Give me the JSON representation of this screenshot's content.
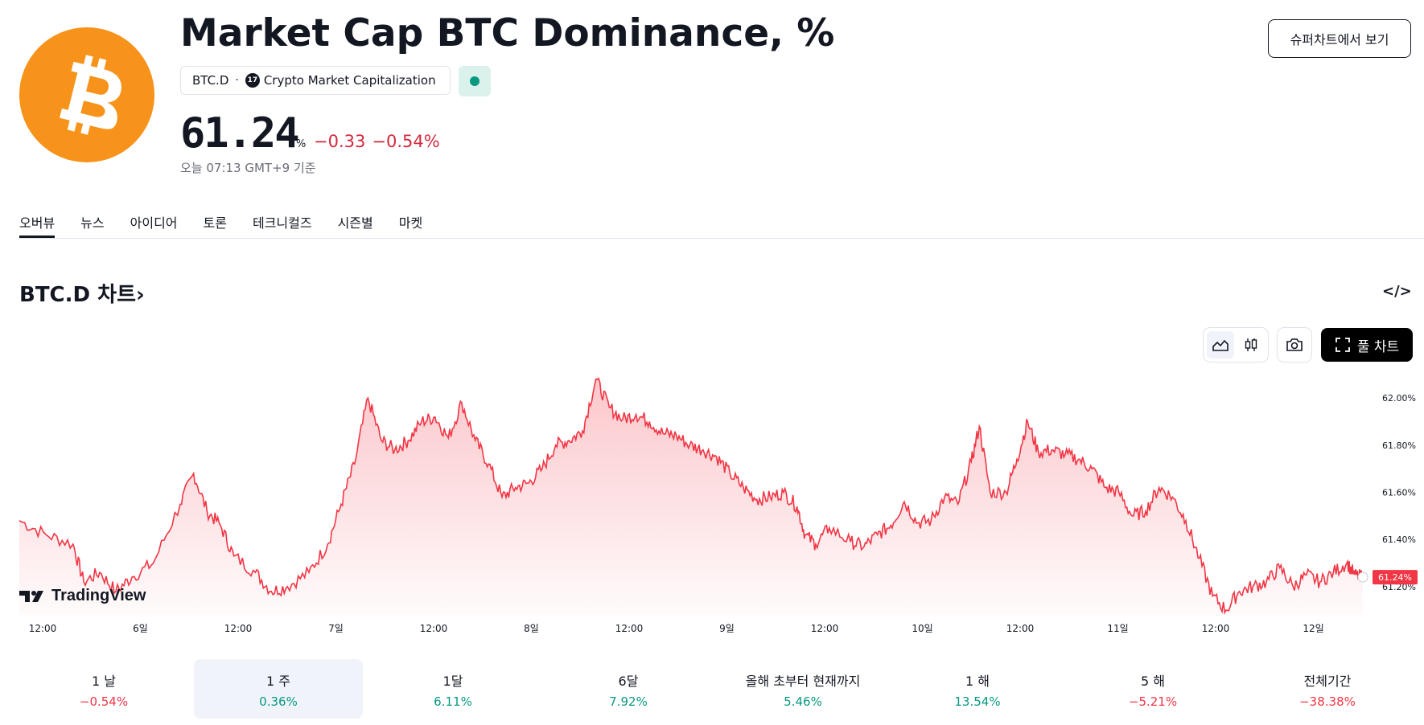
{
  "header": {
    "title": "Market Cap BTC Dominance, %",
    "symbol": "BTC.D",
    "separator": "·",
    "source": "Crypto Market Capitalization",
    "source_icon": "tradingview-logo-icon",
    "market_status_color": "#089981",
    "price": "61.24",
    "price_unit": "%",
    "change_abs": "−0.33",
    "change_pct": "−0.54%",
    "as_of": "오늘 07:13 GMT+9 기준",
    "supercharts_label": "슈퍼차트에서 보기"
  },
  "tabs": [
    "오버뷰",
    "뉴스",
    "아이디어",
    "토론",
    "테크니컬즈",
    "시즌별",
    "마켓"
  ],
  "active_tab": 0,
  "chart_section": {
    "heading": "BTC.D 차트",
    "heading_chevron": "›",
    "embed_icon": "code-embed-icon",
    "full_chart_label": "풀 차트",
    "watermark": "TradingView"
  },
  "chart_data": {
    "type": "area",
    "x_tick_labels": [
      "12:00",
      "6일",
      "12:00",
      "7일",
      "12:00",
      "8일",
      "12:00",
      "9일",
      "12:00",
      "10일",
      "12:00",
      "11일",
      "12:00",
      "12일"
    ],
    "y_tick_labels": [
      "62.00%",
      "61.80%",
      "61.60%",
      "61.40%",
      "61.20%"
    ],
    "ylim": [
      61.08,
      62.12
    ],
    "last_value_label": "61.24%",
    "line_color": "#f23645",
    "key_points": [
      [
        0,
        61.48
      ],
      [
        1,
        61.42
      ],
      [
        2,
        61.38
      ],
      [
        2.4,
        61.22
      ],
      [
        3,
        61.26
      ],
      [
        3.6,
        61.18
      ],
      [
        4.2,
        61.24
      ],
      [
        5,
        61.3
      ],
      [
        6,
        61.55
      ],
      [
        6.5,
        61.68
      ],
      [
        7,
        61.52
      ],
      [
        7.5,
        61.46
      ],
      [
        8,
        61.33
      ],
      [
        8.8,
        61.26
      ],
      [
        9.4,
        61.18
      ],
      [
        10,
        61.2
      ],
      [
        10.8,
        61.26
      ],
      [
        11.5,
        61.38
      ],
      [
        12,
        61.55
      ],
      [
        12.5,
        61.72
      ],
      [
        13,
        62.0
      ],
      [
        13.5,
        61.82
      ],
      [
        14,
        61.78
      ],
      [
        14.5,
        61.82
      ],
      [
        15,
        61.9
      ],
      [
        15.5,
        61.92
      ],
      [
        16,
        61.83
      ],
      [
        16.5,
        61.98
      ],
      [
        17,
        61.82
      ],
      [
        17.5,
        61.72
      ],
      [
        18,
        61.58
      ],
      [
        18.5,
        61.62
      ],
      [
        19,
        61.64
      ],
      [
        19.5,
        61.7
      ],
      [
        20,
        61.8
      ],
      [
        20.5,
        61.82
      ],
      [
        21,
        61.86
      ],
      [
        21.5,
        62.08
      ],
      [
        22,
        61.96
      ],
      [
        22.5,
        61.91
      ],
      [
        23,
        61.93
      ],
      [
        23.5,
        61.9
      ],
      [
        24,
        61.85
      ],
      [
        24.5,
        61.84
      ],
      [
        25,
        61.8
      ],
      [
        25.5,
        61.78
      ],
      [
        26,
        61.75
      ],
      [
        26.5,
        61.68
      ],
      [
        27,
        61.62
      ],
      [
        27.5,
        61.57
      ],
      [
        28,
        61.58
      ],
      [
        28.5,
        61.6
      ],
      [
        29,
        61.54
      ],
      [
        29.3,
        61.42
      ],
      [
        29.7,
        61.38
      ],
      [
        30.2,
        61.45
      ],
      [
        31,
        61.39
      ],
      [
        31.5,
        61.37
      ],
      [
        32,
        61.42
      ],
      [
        32.5,
        61.46
      ],
      [
        33,
        61.56
      ],
      [
        33.5,
        61.47
      ],
      [
        34,
        61.48
      ],
      [
        34.5,
        61.58
      ],
      [
        35,
        61.55
      ],
      [
        35.5,
        61.73
      ],
      [
        35.8,
        61.88
      ],
      [
        36.2,
        61.6
      ],
      [
        36.8,
        61.6
      ],
      [
        37.2,
        61.74
      ],
      [
        37.6,
        61.9
      ],
      [
        38,
        61.77
      ],
      [
        38.5,
        61.78
      ],
      [
        39,
        61.76
      ],
      [
        39.5,
        61.74
      ],
      [
        40,
        61.7
      ],
      [
        40.5,
        61.62
      ],
      [
        41,
        61.6
      ],
      [
        41.5,
        61.5
      ],
      [
        42,
        61.52
      ],
      [
        42.5,
        61.62
      ],
      [
        43,
        61.58
      ],
      [
        43.5,
        61.48
      ],
      [
        44,
        61.32
      ],
      [
        44.5,
        61.16
      ],
      [
        45,
        61.1
      ],
      [
        45.5,
        61.18
      ],
      [
        46,
        61.2
      ],
      [
        46.5,
        61.22
      ],
      [
        47,
        61.28
      ],
      [
        47.5,
        61.2
      ],
      [
        48,
        61.25
      ],
      [
        48.5,
        61.22
      ],
      [
        49,
        61.26
      ],
      [
        49.5,
        61.3
      ],
      [
        49.8,
        61.25
      ],
      [
        50.1,
        61.24
      ]
    ]
  },
  "periods": [
    {
      "label": "1 날",
      "value": "−0.54%",
      "sign": "neg"
    },
    {
      "label": "1 주",
      "value": "0.36%",
      "sign": "pos"
    },
    {
      "label": "1달",
      "value": "6.11%",
      "sign": "pos"
    },
    {
      "label": "6달",
      "value": "7.92%",
      "sign": "pos"
    },
    {
      "label": "올해 초부터 현재까지",
      "value": "5.46%",
      "sign": "pos"
    },
    {
      "label": "1 해",
      "value": "13.54%",
      "sign": "pos"
    },
    {
      "label": "5 해",
      "value": "−5.21%",
      "sign": "neg"
    },
    {
      "label": "전체기간",
      "value": "−38.38%",
      "sign": "neg"
    }
  ],
  "selected_period": 1
}
